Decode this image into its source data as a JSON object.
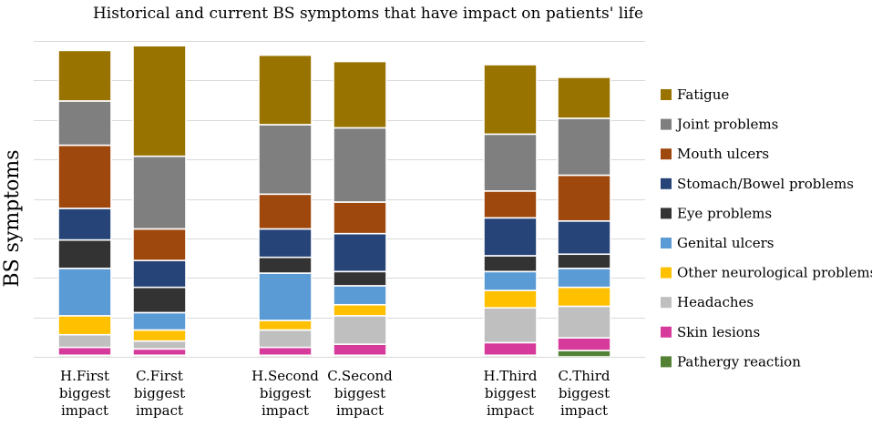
{
  "chart_data": {
    "type": "bar",
    "stacked": true,
    "title": "Historical and current BS symptoms that have impact on patients' life",
    "xlabel": "",
    "ylabel": "BS symptoms",
    "ylim": [
      0,
      100
    ],
    "grid": true,
    "legend_position": "right",
    "categories": [
      [
        "H.First",
        "biggest",
        "impact"
      ],
      [
        "C.First",
        "biggest",
        "impact"
      ],
      [
        "H.Second",
        "biggest",
        "impact"
      ],
      [
        "C.Second",
        "biggest",
        "impact"
      ],
      [
        "H.Third",
        "biggest",
        "impact"
      ],
      [
        "C.Third",
        "biggest",
        "impact"
      ]
    ],
    "series": [
      {
        "name": "Pathergy reaction",
        "color": "#548235",
        "values": [
          0.5,
          0.5,
          0.5,
          0.5,
          0.5,
          2
        ]
      },
      {
        "name": "Skin lesions",
        "color": "#d63a9a",
        "values": [
          2.5,
          2,
          2.5,
          3.5,
          4,
          4
        ]
      },
      {
        "name": "Headaches",
        "color": "#bfbfbf",
        "values": [
          4,
          2.5,
          5.5,
          9,
          11,
          10
        ]
      },
      {
        "name": "Other neurological problems",
        "color": "#ffc000",
        "values": [
          6,
          3.5,
          3,
          3.5,
          5.5,
          6
        ]
      },
      {
        "name": "Genital ulcers",
        "color": "#5b9bd5",
        "values": [
          15,
          5.5,
          15,
          6,
          6,
          6
        ]
      },
      {
        "name": "Eye problems",
        "color": "#333333",
        "values": [
          9,
          8,
          5,
          4.5,
          5,
          4.5
        ]
      },
      {
        "name": "Stomach/Bowel problems",
        "color": "#264478",
        "values": [
          10,
          8.5,
          9,
          12,
          12,
          10.5
        ]
      },
      {
        "name": "Mouth ulcers",
        "color": "#9e480e",
        "values": [
          20,
          10,
          11,
          10,
          8.5,
          14.5
        ]
      },
      {
        "name": "Joint problems",
        "color": "#7f7f7f",
        "values": [
          14,
          23,
          22,
          23.5,
          18,
          18
        ]
      },
      {
        "name": "Fatigue",
        "color": "#997300",
        "values": [
          16,
          35,
          22,
          21,
          22,
          13
        ]
      }
    ]
  }
}
